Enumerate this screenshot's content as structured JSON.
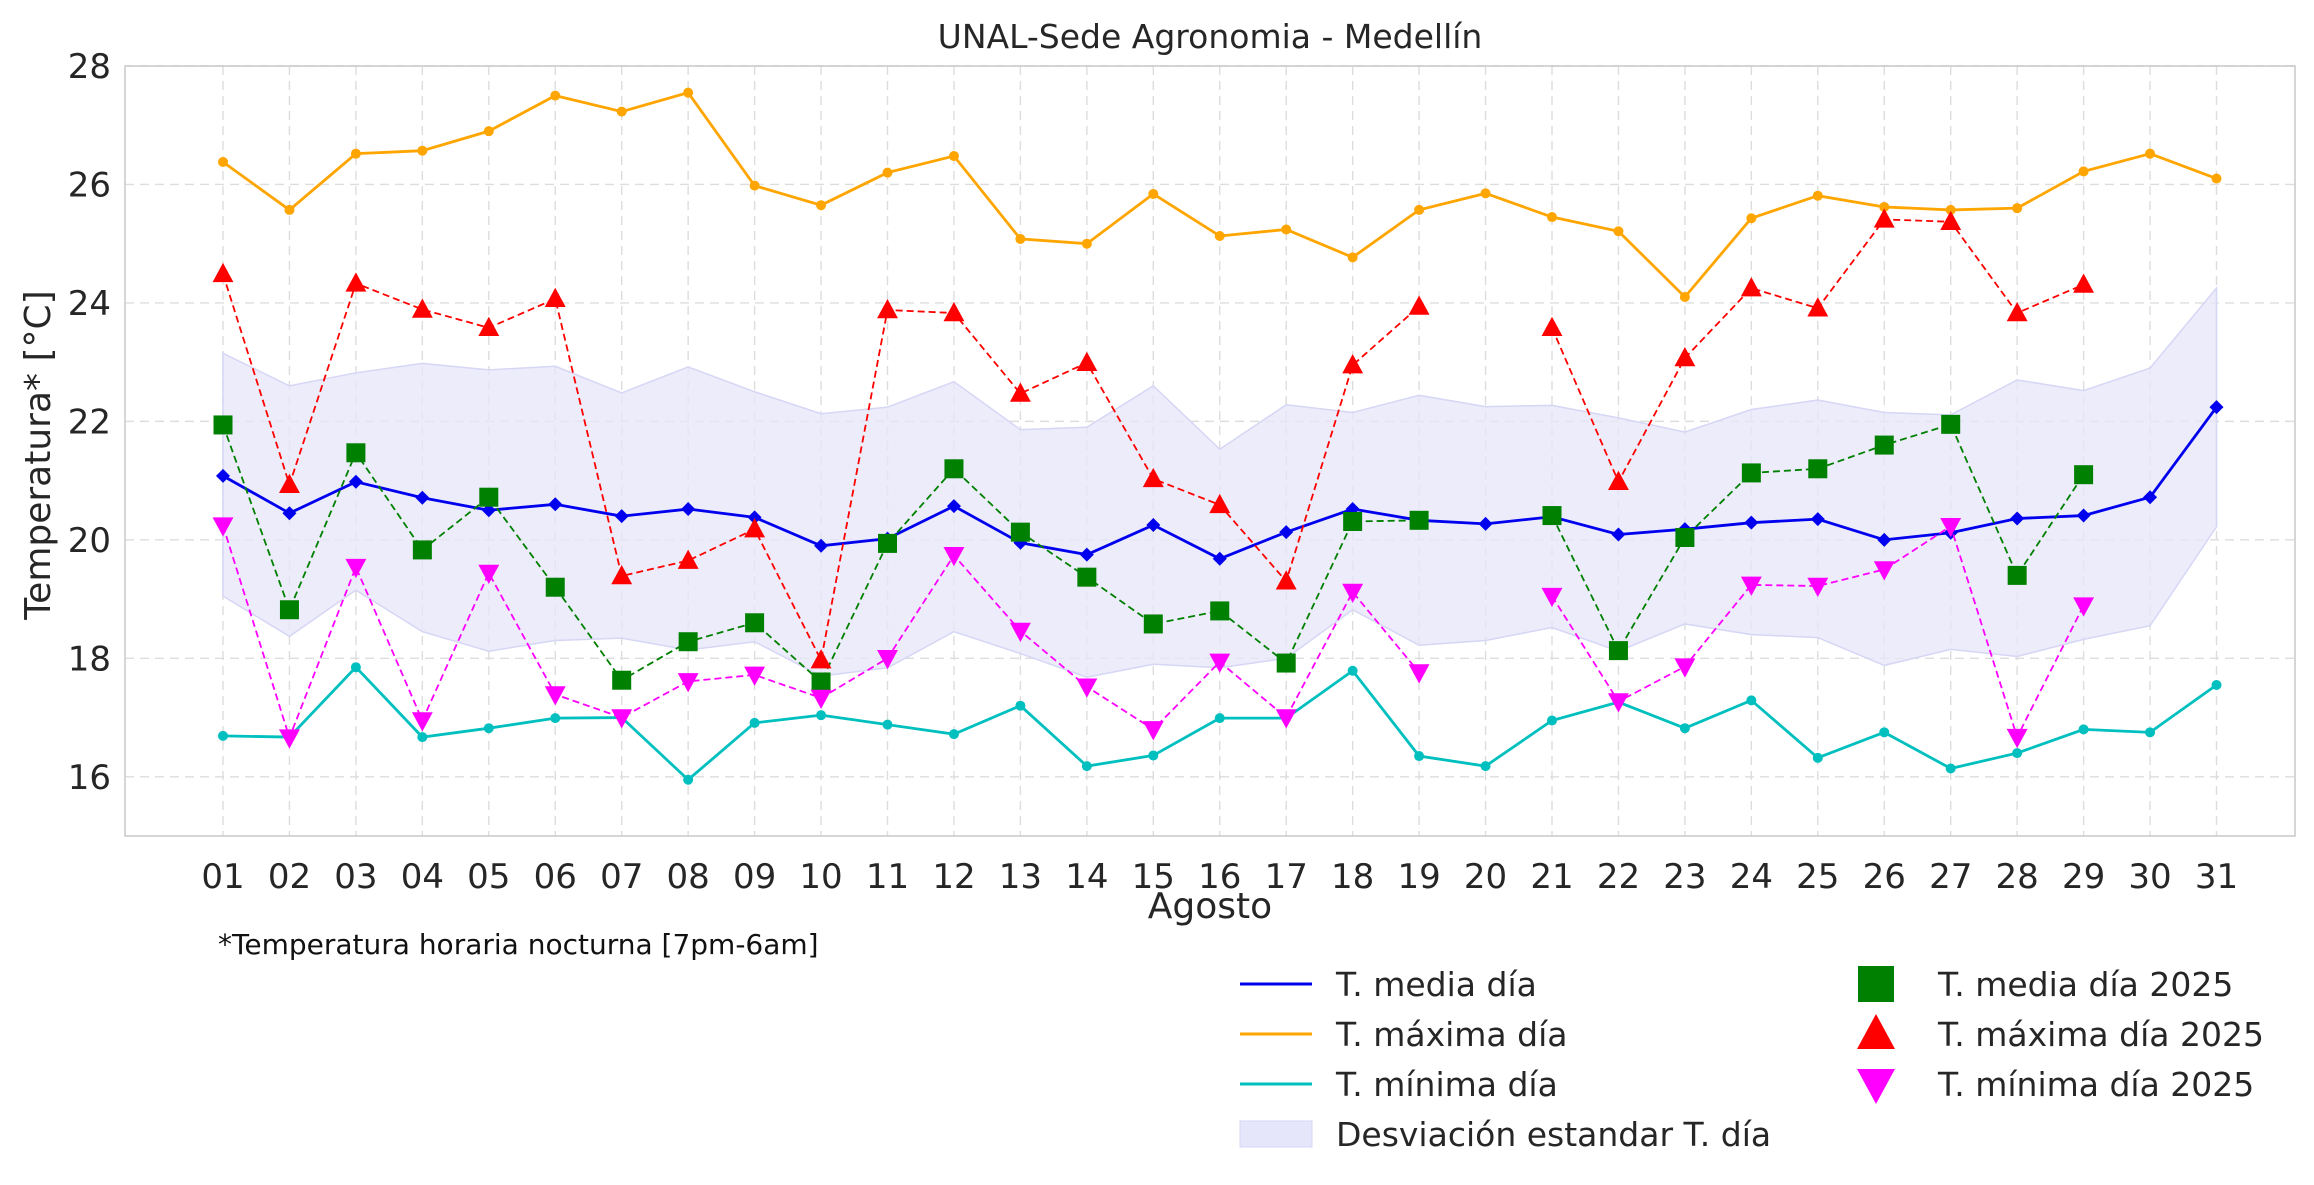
{
  "chart_data": {
    "type": "line",
    "title": "UNAL-Sede Agronomia - Medellín",
    "xlabel": "Agosto",
    "ylabel": "Temperatura* [°C]",
    "footnote": "*Temperatura horaria nocturna [7pm-6am]",
    "ylim": [
      15,
      28
    ],
    "yticks": [
      16,
      18,
      20,
      22,
      24,
      26,
      28
    ],
    "grid": true,
    "legend_position": "bottom-right",
    "categories": [
      "01",
      "02",
      "03",
      "04",
      "05",
      "06",
      "07",
      "08",
      "09",
      "10",
      "11",
      "12",
      "13",
      "14",
      "15",
      "16",
      "17",
      "18",
      "19",
      "20",
      "21",
      "22",
      "23",
      "24",
      "25",
      "26",
      "27",
      "28",
      "29",
      "30",
      "31"
    ],
    "series": [
      {
        "name": "T. media día",
        "color": "#0000ee",
        "style": "solid",
        "marker": "diamond",
        "values": [
          21.08,
          20.45,
          20.98,
          20.71,
          20.5,
          20.6,
          20.4,
          20.52,
          20.38,
          19.9,
          20.02,
          20.57,
          19.95,
          19.75,
          20.25,
          19.68,
          20.13,
          20.52,
          20.33,
          20.27,
          20.39,
          20.09,
          20.18,
          20.29,
          20.35,
          20.0,
          20.12,
          20.36,
          20.41,
          20.72,
          22.24
        ]
      },
      {
        "name": "T. máxima día",
        "color": "#ffa500",
        "style": "solid",
        "marker": "circle",
        "values": [
          26.38,
          25.57,
          26.52,
          26.57,
          26.9,
          27.5,
          27.23,
          27.55,
          25.98,
          25.65,
          26.2,
          26.48,
          25.08,
          25.0,
          25.84,
          25.13,
          25.24,
          24.77,
          25.57,
          25.85,
          25.45,
          25.21,
          24.1,
          25.43,
          25.81,
          25.62,
          25.57,
          25.6,
          26.22,
          26.52,
          26.1
        ]
      },
      {
        "name": "T. mínima día",
        "color": "#00bfbf",
        "style": "solid",
        "marker": "circle",
        "values": [
          16.69,
          16.67,
          17.85,
          16.67,
          16.82,
          16.99,
          17.0,
          15.95,
          16.91,
          17.04,
          16.88,
          16.72,
          17.2,
          16.18,
          16.36,
          16.99,
          16.99,
          17.79,
          16.35,
          16.18,
          16.95,
          17.26,
          16.82,
          17.29,
          16.32,
          16.75,
          16.14,
          16.4,
          16.8,
          16.75,
          17.55
        ]
      },
      {
        "name": "T. media día 2025",
        "color": "#008000",
        "style": "dashed",
        "marker": "square",
        "values": [
          21.94,
          18.82,
          21.47,
          19.83,
          20.72,
          19.2,
          17.63,
          18.28,
          18.6,
          17.6,
          19.94,
          21.2,
          20.13,
          19.37,
          18.58,
          18.8,
          17.92,
          20.31,
          20.33,
          null,
          20.41,
          18.13,
          20.04,
          21.13,
          21.2,
          21.6,
          21.95,
          19.4,
          21.1,
          null,
          null
        ]
      },
      {
        "name": "T. máxima día 2025",
        "color": "#ff0000",
        "style": "dashed",
        "marker": "triangle-up",
        "values": [
          24.49,
          20.93,
          24.33,
          23.89,
          23.58,
          24.07,
          19.39,
          19.65,
          20.18,
          17.97,
          23.88,
          23.83,
          22.47,
          22.99,
          21.03,
          20.59,
          19.3,
          22.95,
          23.94,
          null,
          23.58,
          20.98,
          23.07,
          24.25,
          23.91,
          25.41,
          25.37,
          23.83,
          24.31,
          null,
          null
        ]
      },
      {
        "name": "T. mínima día 2025",
        "color": "#ff00ff",
        "style": "dashed",
        "marker": "triangle-down",
        "values": [
          20.24,
          16.66,
          19.54,
          16.95,
          19.44,
          17.39,
          17.0,
          17.61,
          17.72,
          17.33,
          18.0,
          19.74,
          18.46,
          17.52,
          16.8,
          17.94,
          17.0,
          19.12,
          17.76,
          null,
          19.05,
          17.27,
          17.86,
          19.24,
          19.22,
          19.5,
          20.23,
          16.67,
          18.89,
          null,
          null
        ]
      }
    ],
    "band": {
      "name": "Desviación estandar T. día",
      "color": "#e6e6fa",
      "upper": [
        23.15,
        22.6,
        22.82,
        22.98,
        22.87,
        22.93,
        22.48,
        22.92,
        22.5,
        22.13,
        22.24,
        22.67,
        21.86,
        21.9,
        22.6,
        21.53,
        22.28,
        22.15,
        22.44,
        22.25,
        22.27,
        22.06,
        21.82,
        22.2,
        22.36,
        22.15,
        22.11,
        22.7,
        22.52,
        22.9,
        24.25
      ],
      "lower": [
        19.05,
        18.37,
        19.15,
        18.45,
        18.12,
        18.3,
        18.34,
        18.14,
        18.28,
        17.7,
        17.84,
        18.45,
        18.08,
        17.68,
        17.9,
        17.84,
        18.0,
        18.82,
        18.22,
        18.3,
        18.52,
        18.12,
        18.58,
        18.4,
        18.35,
        17.88,
        18.15,
        18.03,
        18.32,
        18.55,
        20.22
      ]
    }
  }
}
